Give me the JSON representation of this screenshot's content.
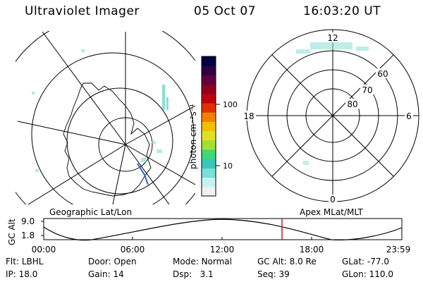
{
  "header": {
    "title": "Ultraviolet Imager",
    "date": "05 Oct 07",
    "time": "16:03:20 UT"
  },
  "colorbar": {
    "label": "photon cm⁻²s⁻¹",
    "ticks": [
      "100",
      "10"
    ],
    "colors": [
      "#f0f0f0",
      "#c8f0f0",
      "#78e0d8",
      "#38c8b8",
      "#40d878",
      "#a0e030",
      "#e0e020",
      "#f0c000",
      "#f08000",
      "#e03000",
      "#c00010",
      "#900020",
      "#600040",
      "#300040",
      "#000040"
    ]
  },
  "polar_plot": {
    "mlt_labels": {
      "top": "12",
      "left": "18",
      "right": "6",
      "bottom": "0"
    },
    "lat_labels": [
      "60",
      "70",
      "80"
    ]
  },
  "timeline": {
    "left_label": "Geographic Lat/Lon",
    "right_label": "Apex MLat/MLT",
    "yaxis_label": "GC Alt",
    "ytick_top": "9.0",
    "ytick_bottom": "1.8",
    "xticks": [
      "00:00",
      "06:00",
      "12:00",
      "18:00",
      "23:59"
    ],
    "marker_color": "#c02020"
  },
  "info": {
    "flt_label": "Flt:",
    "flt_value": "LBHL",
    "ip_label": "IP:",
    "ip_value": "18.0",
    "door_label": "Door:",
    "door_value": "Open",
    "gain_label": "Gain:",
    "gain_value": "14",
    "mode_label": "Mode:",
    "mode_value": "Normal",
    "dsp_label": "Dsp:",
    "dsp_value": "3.1",
    "gcalt_label": "GC Alt:",
    "gcalt_value": "8.0 Re",
    "seq_label": "Seq:",
    "seq_value": "39",
    "glat_label": "GLat:",
    "glat_value": "-77.0",
    "glon_label": "GLon:",
    "glon_value": "110.0"
  }
}
